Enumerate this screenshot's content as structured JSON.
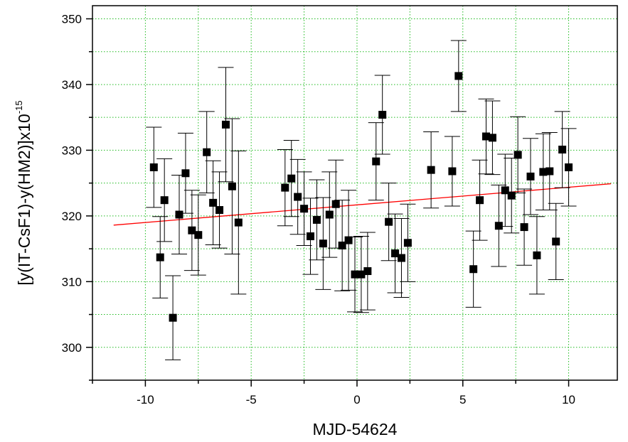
{
  "chart_data": {
    "type": "scatter",
    "xlabel": "MJD-54624",
    "ylabel": {
      "main": "[y(IT-CsF1)-y(HM2)]x10",
      "exponent": "-15"
    },
    "xlim": [
      -12.5,
      12.3
    ],
    "ylim": [
      295,
      352
    ],
    "x_ticks": [
      -10,
      -5,
      0,
      5,
      10
    ],
    "y_ticks": [
      300,
      310,
      320,
      330,
      340,
      350
    ],
    "grid": true,
    "legend": "none",
    "colors": {
      "points": "#000000",
      "fit_line": "#ff0000",
      "grid": "#22bb22",
      "axes": "#000000"
    },
    "points": [
      {
        "x": -9.6,
        "y": 327.4,
        "err": 6.1
      },
      {
        "x": -9.3,
        "y": 313.7,
        "err": 6.2
      },
      {
        "x": -9.1,
        "y": 322.4,
        "err": 6.3
      },
      {
        "x": -8.7,
        "y": 304.5,
        "err": 6.4
      },
      {
        "x": -8.4,
        "y": 320.2,
        "err": 6.0
      },
      {
        "x": -8.1,
        "y": 326.5,
        "err": 6.1
      },
      {
        "x": -7.8,
        "y": 317.8,
        "err": 6.1
      },
      {
        "x": -7.5,
        "y": 317.1,
        "err": 6.1
      },
      {
        "x": -7.1,
        "y": 329.7,
        "err": 6.2
      },
      {
        "x": -6.8,
        "y": 322.0,
        "err": 6.4
      },
      {
        "x": -6.5,
        "y": 320.9,
        "err": 5.8
      },
      {
        "x": -6.2,
        "y": 333.9,
        "err": 8.7
      },
      {
        "x": -5.9,
        "y": 324.5,
        "err": 10.3
      },
      {
        "x": -5.6,
        "y": 319.0,
        "err": 10.9
      },
      {
        "x": -3.4,
        "y": 324.3,
        "err": 5.8
      },
      {
        "x": -3.1,
        "y": 325.7,
        "err": 5.8
      },
      {
        "x": -2.8,
        "y": 322.9,
        "err": 5.7
      },
      {
        "x": -2.5,
        "y": 321.1,
        "err": 5.6
      },
      {
        "x": -2.2,
        "y": 316.9,
        "err": 5.8
      },
      {
        "x": -1.9,
        "y": 319.4,
        "err": 6.1
      },
      {
        "x": -1.6,
        "y": 315.8,
        "err": 7.0
      },
      {
        "x": -1.3,
        "y": 320.2,
        "err": 6.5
      },
      {
        "x": -1.0,
        "y": 321.8,
        "err": 6.7
      },
      {
        "x": -0.7,
        "y": 315.5,
        "err": 6.9
      },
      {
        "x": -0.4,
        "y": 316.3,
        "err": 7.6
      },
      {
        "x": -0.1,
        "y": 311.1,
        "err": 5.7
      },
      {
        "x": 0.2,
        "y": 311.1,
        "err": 5.8
      },
      {
        "x": 0.5,
        "y": 311.6,
        "err": 5.9
      },
      {
        "x": 0.9,
        "y": 328.3,
        "err": 5.9
      },
      {
        "x": 1.2,
        "y": 335.4,
        "err": 6.0
      },
      {
        "x": 1.5,
        "y": 319.1,
        "err": 5.9
      },
      {
        "x": 1.8,
        "y": 314.3,
        "err": 6.0
      },
      {
        "x": 2.1,
        "y": 313.6,
        "err": 6.0
      },
      {
        "x": 2.4,
        "y": 315.9,
        "err": 5.9
      },
      {
        "x": 3.5,
        "y": 327.0,
        "err": 5.8
      },
      {
        "x": 4.5,
        "y": 326.8,
        "err": 5.3
      },
      {
        "x": 4.8,
        "y": 341.3,
        "err": 5.4
      },
      {
        "x": 5.5,
        "y": 311.9,
        "err": 5.8
      },
      {
        "x": 5.8,
        "y": 322.4,
        "err": 6.1
      },
      {
        "x": 6.1,
        "y": 332.1,
        "err": 5.7
      },
      {
        "x": 6.4,
        "y": 331.9,
        "err": 5.6
      },
      {
        "x": 6.7,
        "y": 318.5,
        "err": 6.2
      },
      {
        "x": 7.0,
        "y": 323.9,
        "err": 5.5
      },
      {
        "x": 7.3,
        "y": 323.1,
        "err": 5.7
      },
      {
        "x": 7.6,
        "y": 329.3,
        "err": 5.8
      },
      {
        "x": 7.9,
        "y": 318.3,
        "err": 5.8
      },
      {
        "x": 8.2,
        "y": 326.0,
        "err": 5.8
      },
      {
        "x": 8.5,
        "y": 314.0,
        "err": 5.9
      },
      {
        "x": 8.8,
        "y": 326.7,
        "err": 5.8
      },
      {
        "x": 9.1,
        "y": 326.8,
        "err": 5.9
      },
      {
        "x": 9.4,
        "y": 316.1,
        "err": 5.8
      },
      {
        "x": 9.7,
        "y": 330.1,
        "err": 5.8
      },
      {
        "x": 10.0,
        "y": 327.4,
        "err": 5.9
      }
    ],
    "fit_line": {
      "x": [
        -11.5,
        12.0
      ],
      "y": [
        318.6,
        324.9
      ]
    }
  }
}
